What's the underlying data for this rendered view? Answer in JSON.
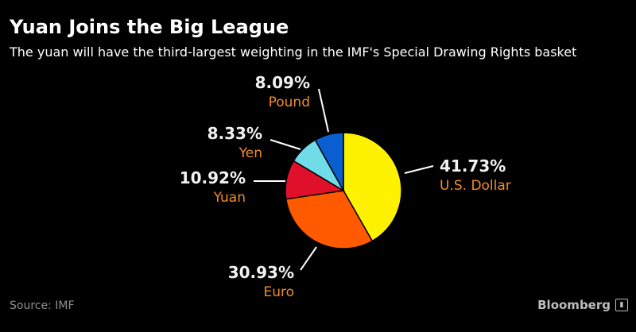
{
  "header": {
    "title": "Yuan Joins the Big League",
    "subtitle": "The yuan will have the third-largest weighting in the IMF's Special Drawing Rights basket"
  },
  "footer": {
    "source": "Source: IMF",
    "brand": "Bloomberg",
    "brand_icon": "bar-chart-icon"
  },
  "chart_data": {
    "type": "pie",
    "title": "Yuan Joins the Big League",
    "start": "12 o'clock, clockwise",
    "slices": [
      {
        "label": "U.S. Dollar",
        "value": 41.73,
        "pct_label": "41.73%",
        "color": "#fff200"
      },
      {
        "label": "Euro",
        "value": 30.93,
        "pct_label": "30.93%",
        "color": "#ff5a00"
      },
      {
        "label": "Yuan",
        "value": 10.92,
        "pct_label": "10.92%",
        "color": "#e0102a"
      },
      {
        "label": "Yen",
        "value": 8.33,
        "pct_label": "8.33%",
        "color": "#6fdce8"
      },
      {
        "label": "Pound",
        "value": 8.09,
        "pct_label": "8.09%",
        "color": "#0a5fd0"
      }
    ]
  }
}
